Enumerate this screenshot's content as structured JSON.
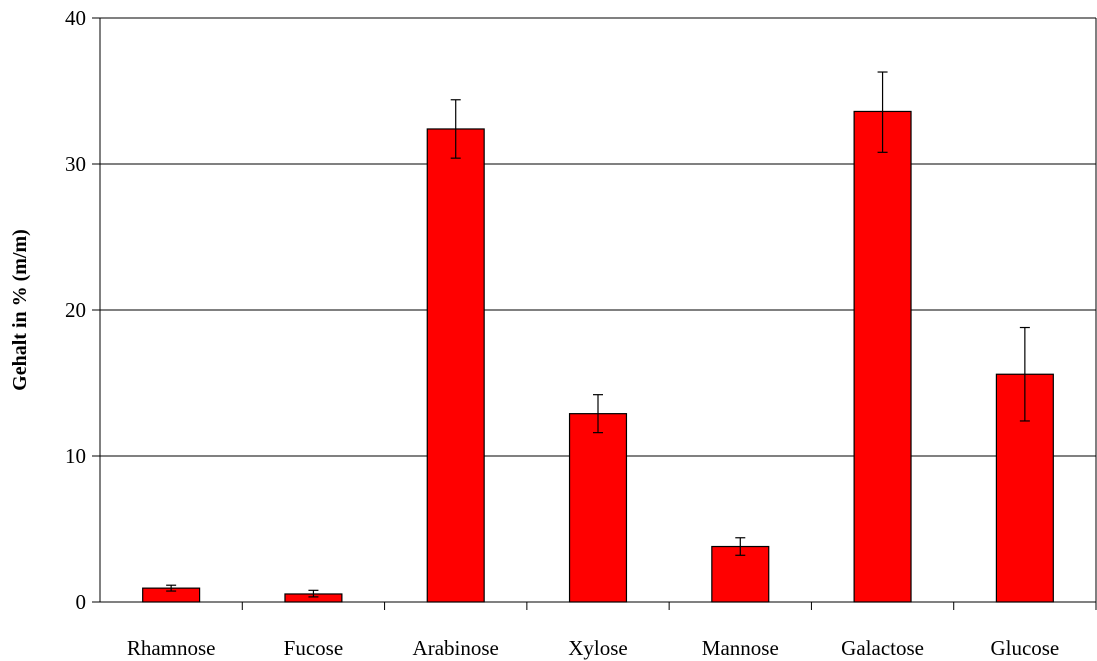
{
  "chart_data": {
    "type": "bar",
    "title": "",
    "xlabel": "",
    "ylabel": "Gehalt in % (m/m)",
    "categories": [
      "Rhamnose",
      "Fucose",
      "Arabinose",
      "Xylose",
      "Mannose",
      "Galactose",
      "Glucose"
    ],
    "values": [
      0.95,
      0.55,
      32.4,
      12.9,
      3.8,
      33.6,
      15.6
    ],
    "error_bars": [
      [
        0.75,
        1.15
      ],
      [
        0.35,
        0.8
      ],
      [
        30.4,
        34.4
      ],
      [
        11.6,
        14.2
      ],
      [
        3.2,
        4.4
      ],
      [
        30.8,
        36.3
      ],
      [
        12.4,
        18.8
      ]
    ],
    "ylim": [
      0,
      40
    ],
    "yticks": [
      0,
      10,
      20,
      30,
      40
    ],
    "grid": true,
    "legend": "none",
    "colors": {
      "bar_fill": "#ff0000",
      "bar_stroke": "#000000",
      "gridline": "#000000",
      "axis": "#000000"
    }
  }
}
